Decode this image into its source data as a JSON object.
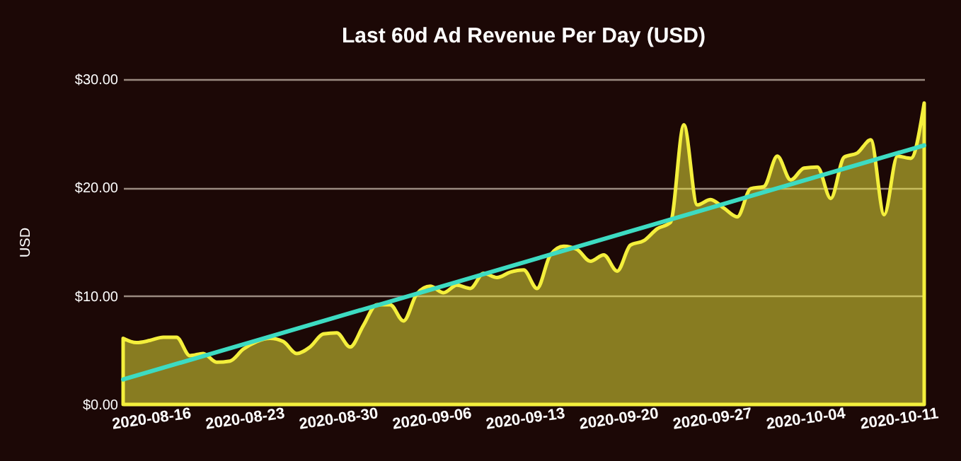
{
  "chart_data": {
    "type": "area",
    "title": "Last 60d Ad Revenue Per Day (USD)",
    "ylabel": "USD",
    "x": [
      "2020-08-14",
      "2020-08-15",
      "2020-08-16",
      "2020-08-17",
      "2020-08-18",
      "2020-08-19",
      "2020-08-20",
      "2020-08-21",
      "2020-08-22",
      "2020-08-23",
      "2020-08-24",
      "2020-08-25",
      "2020-08-26",
      "2020-08-27",
      "2020-08-28",
      "2020-08-29",
      "2020-08-30",
      "2020-08-31",
      "2020-09-01",
      "2020-09-02",
      "2020-09-03",
      "2020-09-04",
      "2020-09-05",
      "2020-09-06",
      "2020-09-07",
      "2020-09-08",
      "2020-09-09",
      "2020-09-10",
      "2020-09-11",
      "2020-09-12",
      "2020-09-13",
      "2020-09-14",
      "2020-09-15",
      "2020-09-16",
      "2020-09-17",
      "2020-09-18",
      "2020-09-19",
      "2020-09-20",
      "2020-09-21",
      "2020-09-22",
      "2020-09-23",
      "2020-09-24",
      "2020-09-25",
      "2020-09-26",
      "2020-09-27",
      "2020-09-28",
      "2020-09-29",
      "2020-09-30",
      "2020-10-01",
      "2020-10-02",
      "2020-10-03",
      "2020-10-04",
      "2020-10-05",
      "2020-10-06",
      "2020-10-07",
      "2020-10-08",
      "2020-10-09",
      "2020-10-10",
      "2020-10-11",
      "2020-10-12",
      "2020-10-13"
    ],
    "series": [
      {
        "type": "area",
        "color": "#f4ef3c",
        "values": [
          6.1,
          5.7,
          5.9,
          6.2,
          6.2,
          4.5,
          4.7,
          3.9,
          4.0,
          5.1,
          5.8,
          6.1,
          5.8,
          4.7,
          5.3,
          6.5,
          6.6,
          5.3,
          7.3,
          9.2,
          9.2,
          7.7,
          10.2,
          10.9,
          10.3,
          11.0,
          10.7,
          12.1,
          11.7,
          12.2,
          12.4,
          10.7,
          13.8,
          14.6,
          14.3,
          13.2,
          13.8,
          12.3,
          14.7,
          15.1,
          16.2,
          16.8,
          25.8,
          18.4,
          18.9,
          18.1,
          17.3,
          19.9,
          20.1,
          22.9,
          20.7,
          21.8,
          21.9,
          19.0,
          22.8,
          23.2,
          24.4,
          17.5,
          22.9,
          22.7,
          27.8
        ]
      },
      {
        "type": "line",
        "color": "#3ddbc2",
        "x": [
          "2020-08-14",
          "2020-10-13"
        ],
        "values": [
          2.3,
          23.9
        ]
      }
    ],
    "xlim": [
      "2020-08-14",
      "2020-10-13"
    ],
    "xticks": [
      "2020-08-16",
      "2020-08-23",
      "2020-08-30",
      "2020-09-06",
      "2020-09-13",
      "2020-09-20",
      "2020-09-27",
      "2020-10-04",
      "2020-10-11"
    ],
    "ylim": [
      0,
      30
    ],
    "yticks": [
      {
        "value": 0,
        "label": "$0.00"
      },
      {
        "value": 10,
        "label": "$10.00"
      },
      {
        "value": 20,
        "label": "$20.00"
      },
      {
        "value": 30,
        "label": "$30.00"
      }
    ],
    "grid": "y"
  }
}
